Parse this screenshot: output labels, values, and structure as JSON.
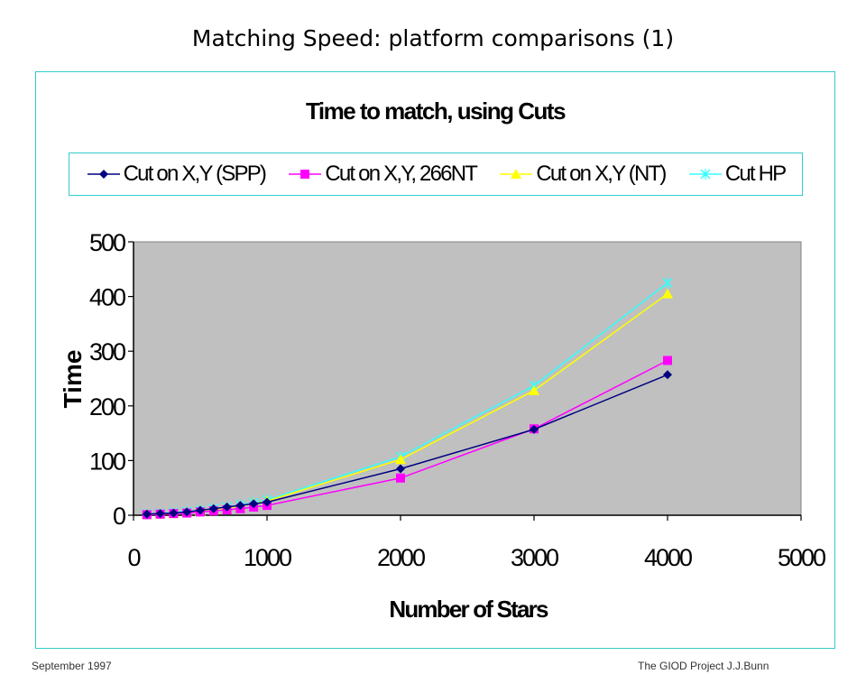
{
  "slide": {
    "title": "Matching Speed: platform comparisons (1)",
    "footer_left": "September 1997",
    "footer_right": "The GIOD Project    J.J.Bunn"
  },
  "chart_data": {
    "type": "line",
    "title": "Time to match, using Cuts",
    "xlabel": "Number of Stars",
    "ylabel": "Time",
    "xlim": [
      0,
      5000
    ],
    "ylim": [
      0,
      500
    ],
    "xticks": [
      0,
      1000,
      2000,
      3000,
      4000,
      5000
    ],
    "yticks": [
      0,
      100,
      200,
      300,
      400,
      500
    ],
    "grid": false,
    "plot_background": "#c0c0c0",
    "legend_position": "top",
    "series": [
      {
        "name": "Cut on X,Y (SPP)",
        "color": "#000080",
        "marker": "diamond",
        "x": [
          100,
          200,
          300,
          400,
          500,
          600,
          700,
          800,
          900,
          1000,
          2000,
          3000,
          4000
        ],
        "y": [
          2,
          3,
          4,
          6,
          9,
          12,
          15,
          18,
          21,
          24,
          85,
          157,
          257
        ]
      },
      {
        "name": "Cut on X,Y, 266NT",
        "color": "#ff00ff",
        "marker": "square",
        "x": [
          100,
          200,
          300,
          400,
          500,
          600,
          700,
          800,
          900,
          1000,
          2000,
          3000,
          4000
        ],
        "y": [
          1,
          2,
          3,
          4,
          6,
          8,
          10,
          12,
          15,
          18,
          68,
          158,
          283
        ]
      },
      {
        "name": "Cut on X,Y (NT)",
        "color": "#ffff00",
        "marker": "triangle",
        "x": [
          100,
          200,
          300,
          400,
          500,
          600,
          700,
          800,
          900,
          1000,
          2000,
          3000,
          4000
        ],
        "y": [
          1,
          2,
          3,
          5,
          7,
          10,
          13,
          17,
          21,
          26,
          102,
          228,
          405
        ]
      },
      {
        "name": "Cut HP",
        "color": "#33ffff",
        "marker": "x",
        "x": [
          100,
          200,
          300,
          400,
          500,
          600,
          700,
          800,
          900,
          1000,
          2000,
          3000,
          4000
        ],
        "y": [
          2,
          3,
          5,
          7,
          9,
          12,
          15,
          19,
          23,
          28,
          107,
          237,
          425
        ]
      }
    ]
  }
}
